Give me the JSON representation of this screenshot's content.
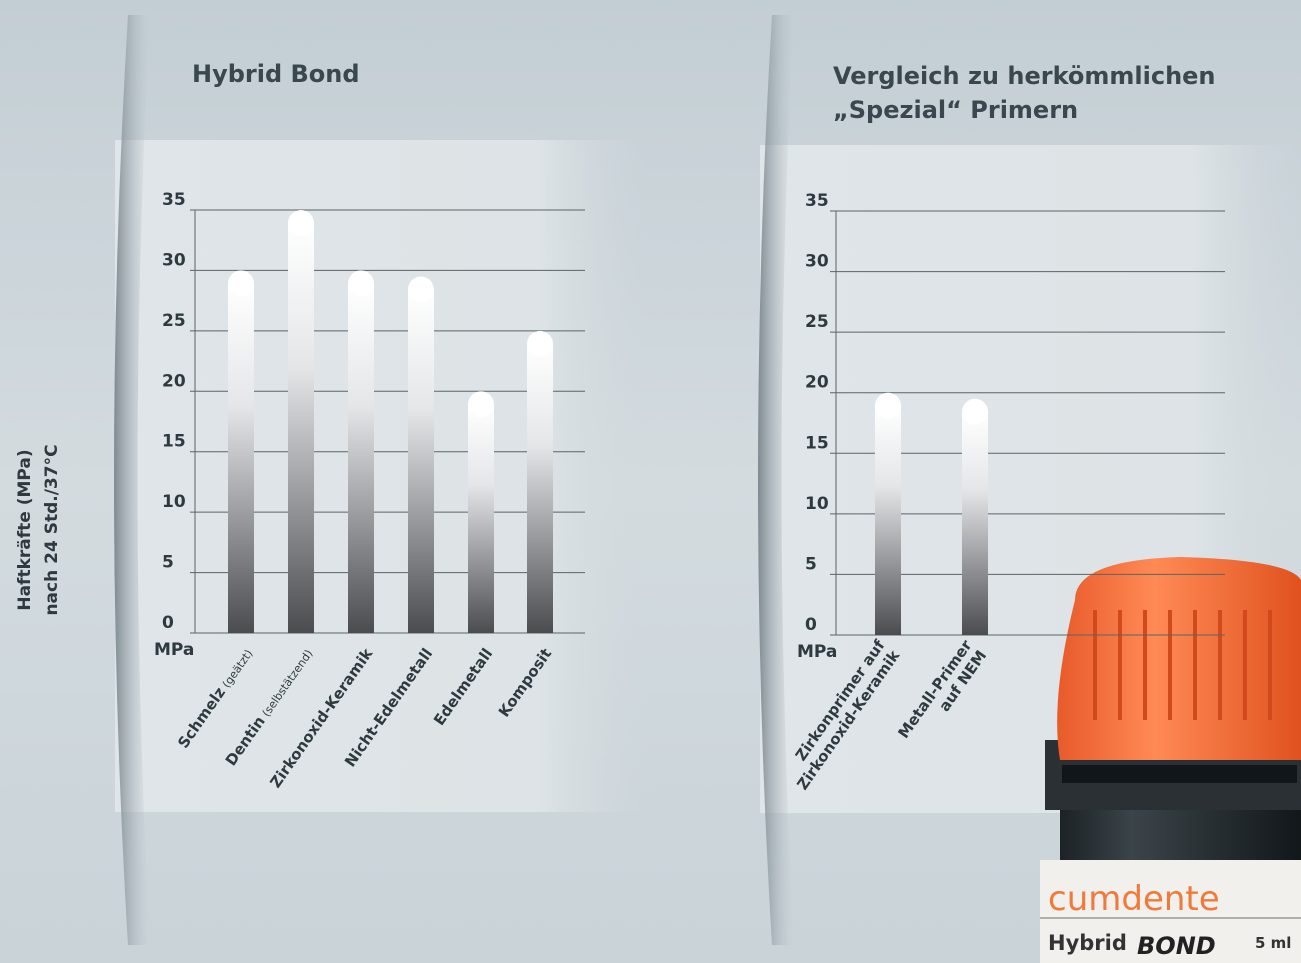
{
  "chart_data": [
    {
      "type": "bar",
      "title": "Hybrid Bond",
      "ylabel": [
        "Haftkräfte (MPa)",
        "nach 24 Std./37°C"
      ],
      "unit": "MPa",
      "categories": [
        "Schmelz",
        "Dentin",
        "Zirkonoxid-Keramik",
        "Nicht-Edelmetall",
        "Edelmetall",
        "Komposit"
      ],
      "category_notes": [
        "(geätzt)",
        "(selbstätzend)",
        null,
        null,
        null,
        null
      ],
      "values": [
        30,
        35,
        30,
        29.5,
        20,
        25
      ],
      "ylim": [
        0,
        35
      ],
      "yticks": [
        0,
        5,
        10,
        15,
        20,
        25,
        30,
        35
      ],
      "grid": true
    },
    {
      "type": "bar",
      "title": [
        "Vergleich zu herkömmlichen",
        "„Spezial“ Primern"
      ],
      "unit": "MPa",
      "categories": [
        [
          "Zirkonprimer auf",
          "Zirkonoxid-Keramik"
        ],
        [
          "Metall-Primer",
          "auf NEM"
        ]
      ],
      "values": [
        20,
        19.5
      ],
      "ylim": [
        0,
        35
      ],
      "yticks": [
        0,
        5,
        10,
        15,
        20,
        25,
        30,
        35
      ],
      "grid": true
    }
  ],
  "product": {
    "brand": "cumdente",
    "name_1": "Hybrid",
    "name_2": "BOND",
    "volume": "5 ml"
  }
}
